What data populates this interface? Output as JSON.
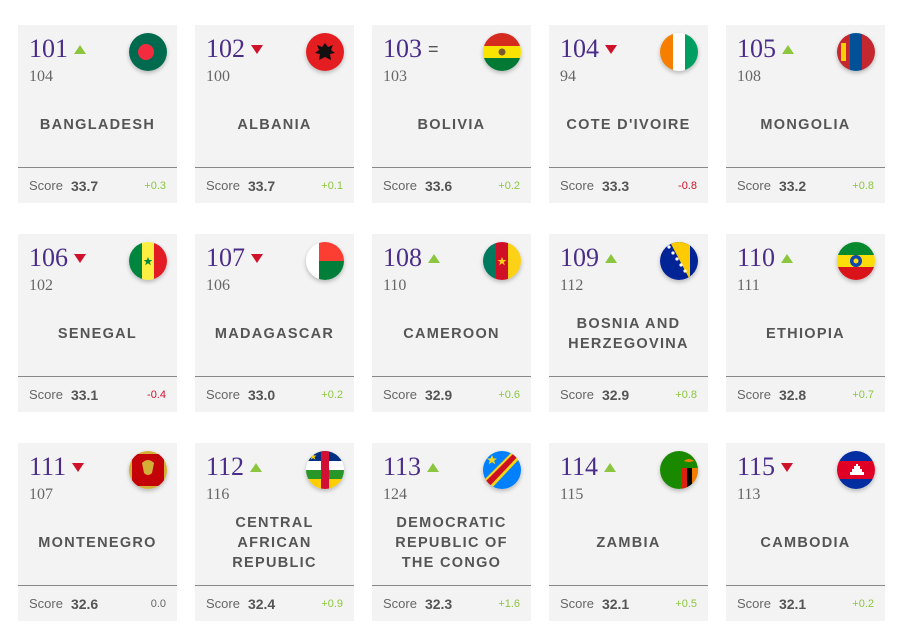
{
  "cards": [
    {
      "rank": "101",
      "trend": "up",
      "prev": "104",
      "name": "BANGLADESH",
      "score_label": "Score",
      "score": "33.7",
      "change": "+0.3",
      "flag": "bangladesh-flag-icon"
    },
    {
      "rank": "102",
      "trend": "down",
      "prev": "100",
      "name": "ALBANIA",
      "score_label": "Score",
      "score": "33.7",
      "change": "+0.1",
      "flag": "albania-flag-icon"
    },
    {
      "rank": "103",
      "trend": "same",
      "prev": "103",
      "name": "BOLIVIA",
      "score_label": "Score",
      "score": "33.6",
      "change": "+0.2",
      "flag": "bolivia-flag-icon"
    },
    {
      "rank": "104",
      "trend": "down",
      "prev": "94",
      "name": "COTE D'IVOIRE",
      "score_label": "Score",
      "score": "33.3",
      "change": "-0.8",
      "flag": "cote-divoire-flag-icon"
    },
    {
      "rank": "105",
      "trend": "up",
      "prev": "108",
      "name": "MONGOLIA",
      "score_label": "Score",
      "score": "33.2",
      "change": "+0.8",
      "flag": "mongolia-flag-icon"
    },
    {
      "rank": "106",
      "trend": "down",
      "prev": "102",
      "name": "SENEGAL",
      "score_label": "Score",
      "score": "33.1",
      "change": "-0.4",
      "flag": "senegal-flag-icon"
    },
    {
      "rank": "107",
      "trend": "down",
      "prev": "106",
      "name": "MADAGASCAR",
      "score_label": "Score",
      "score": "33.0",
      "change": "+0.2",
      "flag": "madagascar-flag-icon"
    },
    {
      "rank": "108",
      "trend": "up",
      "prev": "110",
      "name": "CAMEROON",
      "score_label": "Score",
      "score": "32.9",
      "change": "+0.6",
      "flag": "cameroon-flag-icon"
    },
    {
      "rank": "109",
      "trend": "up",
      "prev": "112",
      "name": "BOSNIA AND HERZEGOVINA",
      "score_label": "Score",
      "score": "32.9",
      "change": "+0.8",
      "flag": "bosnia-flag-icon"
    },
    {
      "rank": "110",
      "trend": "up",
      "prev": "111",
      "name": "ETHIOPIA",
      "score_label": "Score",
      "score": "32.8",
      "change": "+0.7",
      "flag": "ethiopia-flag-icon"
    },
    {
      "rank": "111",
      "trend": "down",
      "prev": "107",
      "name": "MONTENEGRO",
      "score_label": "Score",
      "score": "32.6",
      "change": "0.0",
      "flag": "montenegro-flag-icon"
    },
    {
      "rank": "112",
      "trend": "up",
      "prev": "116",
      "name": "CENTRAL AFRICAN REPUBLIC",
      "score_label": "Score",
      "score": "32.4",
      "change": "+0.9",
      "flag": "central-african-republic-flag-icon"
    },
    {
      "rank": "113",
      "trend": "up",
      "prev": "124",
      "name": "DEMOCRATIC REPUBLIC OF THE CONGO",
      "score_label": "Score",
      "score": "32.3",
      "change": "+1.6",
      "flag": "dr-congo-flag-icon"
    },
    {
      "rank": "114",
      "trend": "up",
      "prev": "115",
      "name": "ZAMBIA",
      "score_label": "Score",
      "score": "32.1",
      "change": "+0.5",
      "flag": "zambia-flag-icon"
    },
    {
      "rank": "115",
      "trend": "down",
      "prev": "113",
      "name": "CAMBODIA",
      "score_label": "Score",
      "score": "32.1",
      "change": "+0.2",
      "flag": "cambodia-flag-icon"
    }
  ],
  "colors": {
    "rank": "#4a2d8a",
    "up": "#8cc63f",
    "down": "#d0112b",
    "card_bg": "#f3f3f3"
  }
}
